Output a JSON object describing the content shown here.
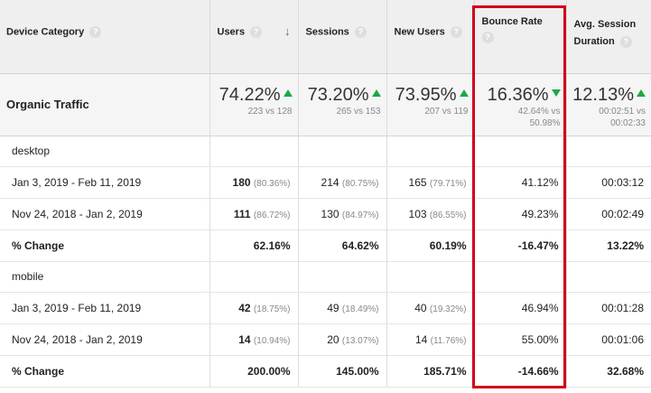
{
  "headers": {
    "device_category": "Device Category",
    "users": "Users",
    "sessions": "Sessions",
    "new_users": "New Users",
    "bounce_rate": "Bounce Rate",
    "avg_session_line1": "Avg. Session",
    "avg_session_line2": "Duration",
    "help_glyph": "?",
    "sort_glyph": "↓"
  },
  "summary": {
    "label": "Organic Traffic",
    "users": {
      "value": "74.22%",
      "sub": "223 vs 128",
      "direction": "up"
    },
    "sessions": {
      "value": "73.20%",
      "sub": "265 vs 153",
      "direction": "up"
    },
    "new_users": {
      "value": "73.95%",
      "sub": "207 vs 119",
      "direction": "up"
    },
    "bounce_rate": {
      "value": "16.36%",
      "sub1": "42.64% vs",
      "sub2": "50.98%",
      "direction": "down"
    },
    "avg_session": {
      "value": "12.13%",
      "sub1": "00:02:51 vs",
      "sub2": "00:02:33",
      "direction": "up"
    },
    "arrow_color": "#1ea745"
  },
  "groups": [
    {
      "name": "desktop",
      "rows": [
        {
          "period": "Jan 3, 2019 - Feb 11, 2019",
          "users": "180",
          "users_pct": "(80.36%)",
          "sessions": "214",
          "sessions_pct": "(80.75%)",
          "new_users": "165",
          "new_users_pct": "(79.71%)",
          "bounce_rate": "41.12%",
          "avg_session": "00:03:12"
        },
        {
          "period": "Nov 24, 2018 - Jan 2, 2019",
          "users": "111",
          "users_pct": "(86.72%)",
          "sessions": "130",
          "sessions_pct": "(84.97%)",
          "new_users": "103",
          "new_users_pct": "(86.55%)",
          "bounce_rate": "49.23%",
          "avg_session": "00:02:49"
        }
      ],
      "change": {
        "label": "% Change",
        "users": "62.16%",
        "sessions": "64.62%",
        "new_users": "60.19%",
        "bounce_rate": "-16.47%",
        "avg_session": "13.22%"
      }
    },
    {
      "name": "mobile",
      "rows": [
        {
          "period": "Jan 3, 2019 - Feb 11, 2019",
          "users": "42",
          "users_pct": "(18.75%)",
          "sessions": "49",
          "sessions_pct": "(18.49%)",
          "new_users": "40",
          "new_users_pct": "(19.32%)",
          "bounce_rate": "46.94%",
          "avg_session": "00:01:28"
        },
        {
          "period": "Nov 24, 2018 - Jan 2, 2019",
          "users": "14",
          "users_pct": "(10.94%)",
          "sessions": "20",
          "sessions_pct": "(13.07%)",
          "new_users": "14",
          "new_users_pct": "(11.76%)",
          "bounce_rate": "55.00%",
          "avg_session": "00:01:06"
        }
      ],
      "change": {
        "label": "% Change",
        "users": "200.00%",
        "sessions": "145.00%",
        "new_users": "185.71%",
        "bounce_rate": "-14.66%",
        "avg_session": "32.68%"
      }
    }
  ],
  "highlight_color": "#d0021b"
}
